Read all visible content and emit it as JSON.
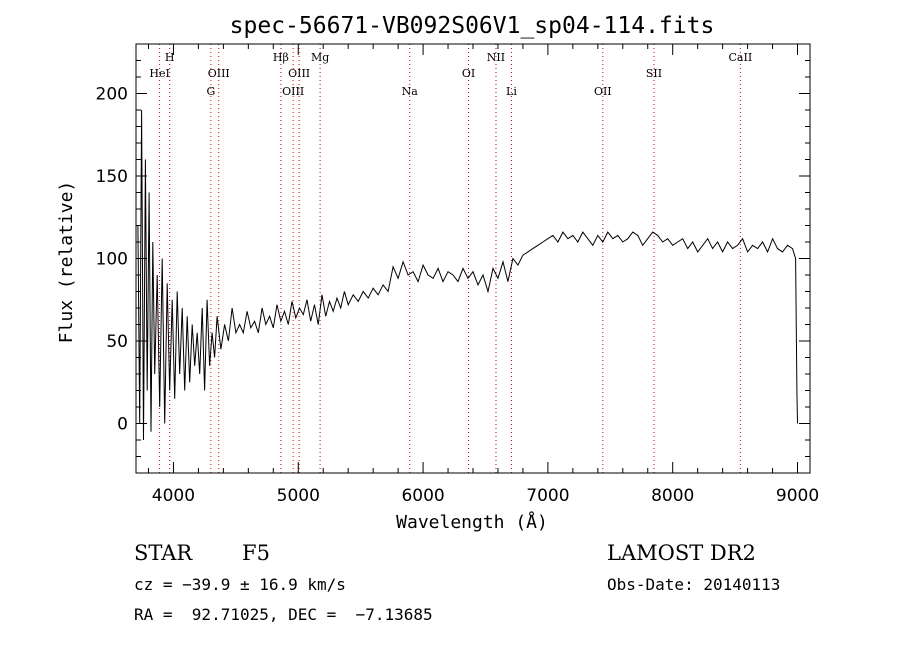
{
  "chart_data": {
    "type": "line",
    "title": "spec-56671-VB092S06V1_sp04-114.fits",
    "xlabel": "Wavelength (Å)",
    "ylabel": "Flux (relative)",
    "xlim": [
      3700,
      9100
    ],
    "ylim": [
      -30,
      230
    ],
    "x_ticks": [
      {
        "value": 4000,
        "label": "4000"
      },
      {
        "value": 5000,
        "label": "5000"
      },
      {
        "value": 6000,
        "label": "6000"
      },
      {
        "value": 7000,
        "label": "7000"
      },
      {
        "value": 8000,
        "label": "8000"
      },
      {
        "value": 9000,
        "label": "9000"
      }
    ],
    "y_ticks": [
      {
        "value": 0,
        "label": "0"
      },
      {
        "value": 50,
        "label": "50"
      },
      {
        "value": 100,
        "label": "100"
      },
      {
        "value": 150,
        "label": "150"
      },
      {
        "value": 200,
        "label": "200"
      }
    ],
    "x_minor_step": 200,
    "y_minor_step": 10,
    "grid": false,
    "line_color": "#000000",
    "marker_color": "#cc0000",
    "series": [
      {
        "x": [
          3715,
          3730,
          3745,
          3760,
          3775,
          3790,
          3805,
          3820,
          3835,
          3850,
          3870,
          3890,
          3910,
          3930,
          3950,
          3970,
          3990,
          4010,
          4030,
          4050,
          4070,
          4090,
          4110,
          4130,
          4150,
          4170,
          4190,
          4210,
          4230,
          4250,
          4270,
          4290,
          4310,
          4330,
          4350,
          4380,
          4410,
          4440,
          4470,
          4500,
          4530,
          4560,
          4590,
          4620,
          4650,
          4680,
          4710,
          4740,
          4770,
          4800,
          4830,
          4860,
          4890,
          4920,
          4950,
          4980,
          5010,
          5040,
          5070,
          5100,
          5130,
          5160,
          5190,
          5220,
          5250,
          5280,
          5310,
          5340,
          5370,
          5400,
          5440,
          5480,
          5520,
          5560,
          5600,
          5640,
          5680,
          5720,
          5760,
          5800,
          5840,
          5880,
          5920,
          5960,
          6000,
          6040,
          6080,
          6120,
          6160,
          6200,
          6240,
          6280,
          6320,
          6360,
          6400,
          6440,
          6480,
          6520,
          6560,
          6600,
          6640,
          6680,
          6720,
          6760,
          6800,
          6840,
          6880,
          6920,
          6960,
          7000,
          7040,
          7080,
          7120,
          7160,
          7200,
          7240,
          7280,
          7320,
          7360,
          7400,
          7440,
          7480,
          7520,
          7560,
          7600,
          7640,
          7680,
          7720,
          7760,
          7800,
          7840,
          7880,
          7920,
          7960,
          8000,
          8040,
          8080,
          8120,
          8160,
          8200,
          8240,
          8280,
          8320,
          8360,
          8400,
          8440,
          8480,
          8520,
          8560,
          8600,
          8640,
          8680,
          8720,
          8760,
          8800,
          8840,
          8880,
          8920,
          8960,
          8985,
          8995,
          9000
        ],
        "y": [
          120,
          0,
          190,
          -10,
          160,
          20,
          140,
          -5,
          110,
          30,
          90,
          10,
          100,
          0,
          85,
          20,
          75,
          15,
          80,
          30,
          70,
          20,
          65,
          25,
          60,
          35,
          55,
          30,
          70,
          20,
          75,
          35,
          55,
          40,
          65,
          45,
          60,
          50,
          70,
          55,
          60,
          55,
          68,
          58,
          62,
          55,
          70,
          60,
          65,
          58,
          72,
          62,
          68,
          60,
          74,
          64,
          70,
          66,
          75,
          62,
          72,
          60,
          78,
          65,
          74,
          68,
          76,
          70,
          80,
          72,
          78,
          74,
          80,
          76,
          82,
          78,
          84,
          80,
          95,
          88,
          98,
          90,
          92,
          86,
          96,
          90,
          88,
          94,
          86,
          92,
          90,
          86,
          94,
          88,
          92,
          84,
          90,
          80,
          94,
          88,
          98,
          86,
          100,
          96,
          102,
          104,
          106,
          108,
          110,
          112,
          114,
          110,
          116,
          112,
          114,
          110,
          116,
          112,
          108,
          114,
          110,
          116,
          112,
          114,
          110,
          112,
          116,
          114,
          108,
          112,
          116,
          114,
          110,
          112,
          108,
          110,
          112,
          106,
          110,
          104,
          108,
          112,
          106,
          110,
          104,
          110,
          106,
          108,
          112,
          104,
          108,
          106,
          110,
          104,
          112,
          106,
          104,
          108,
          106,
          100,
          20,
          0
        ]
      }
    ],
    "line_labels": [
      {
        "x": 3889,
        "label": "HeI",
        "row": 2
      },
      {
        "x": 3970,
        "label": "H",
        "row": 1
      },
      {
        "x": 4300,
        "label": "G",
        "row": 3
      },
      {
        "x": 4363,
        "label": "OIII",
        "row": 2
      },
      {
        "x": 4861,
        "label": "Hβ",
        "row": 1
      },
      {
        "x": 4959,
        "label": "OIII",
        "row": 3
      },
      {
        "x": 5007,
        "label": "OIII",
        "row": 2
      },
      {
        "x": 5175,
        "label": "Mg",
        "row": 1
      },
      {
        "x": 5893,
        "label": "Na",
        "row": 3
      },
      {
        "x": 6364,
        "label": "OI",
        "row": 2
      },
      {
        "x": 6584,
        "label": "NII",
        "row": 1
      },
      {
        "x": 6708,
        "label": "Li",
        "row": 3
      },
      {
        "x": 7440,
        "label": "OII",
        "row": 3
      },
      {
        "x": 7850,
        "label": "SII",
        "row": 2
      },
      {
        "x": 8542,
        "label": "CaII",
        "row": 1
      }
    ]
  },
  "info": {
    "class": "STAR",
    "subclass": "F5",
    "survey": "LAMOST DR2",
    "cz": "cz = −39.9 ± 16.9 km/s",
    "obs_date": "Obs-Date: 20140113",
    "coords": "RA =  92.71025, DEC =  −7.13685"
  }
}
